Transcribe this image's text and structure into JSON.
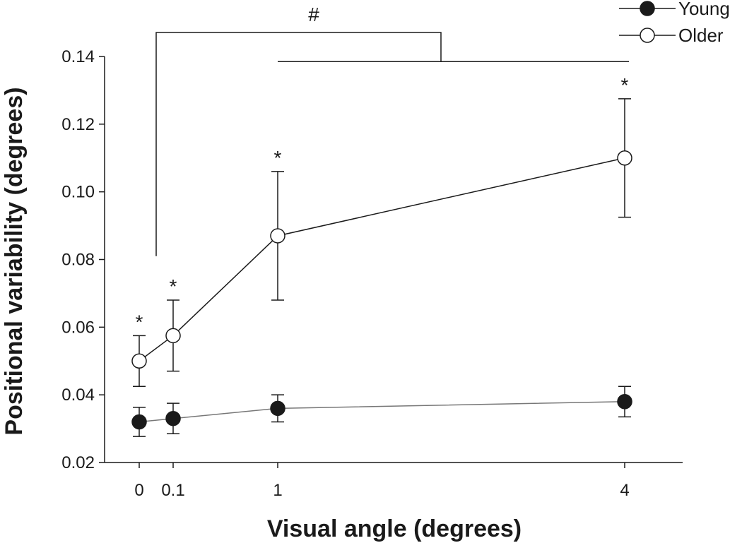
{
  "chart_data": {
    "type": "line",
    "xlabel": "Visual angle (degrees)",
    "ylabel": "Positional variability (degrees)",
    "x_categories": [
      "0",
      "0.1",
      "1",
      "4"
    ],
    "yticks": [
      "0.02",
      "0.04",
      "0.06",
      "0.08",
      "0.10",
      "0.12",
      "0.14"
    ],
    "ylim": [
      0.02,
      0.14
    ],
    "series": [
      {
        "name": "Young",
        "marker": "filled-circle",
        "color": "#1a1a1a",
        "values": [
          0.032,
          0.033,
          0.036,
          0.038
        ],
        "error": [
          0.0043,
          0.0045,
          0.004,
          0.0045
        ]
      },
      {
        "name": "Older",
        "marker": "open-circle",
        "color": "#1a1a1a",
        "values": [
          0.05,
          0.0575,
          0.087,
          0.11
        ],
        "error": [
          0.0075,
          0.0105,
          0.019,
          0.0175
        ]
      }
    ],
    "annotations": {
      "significance_marker": "*",
      "significance_x": [
        "0",
        "0.1",
        "1",
        "4"
      ],
      "bracket_label": "#"
    },
    "legend_position": "top-right",
    "grid": false
  }
}
